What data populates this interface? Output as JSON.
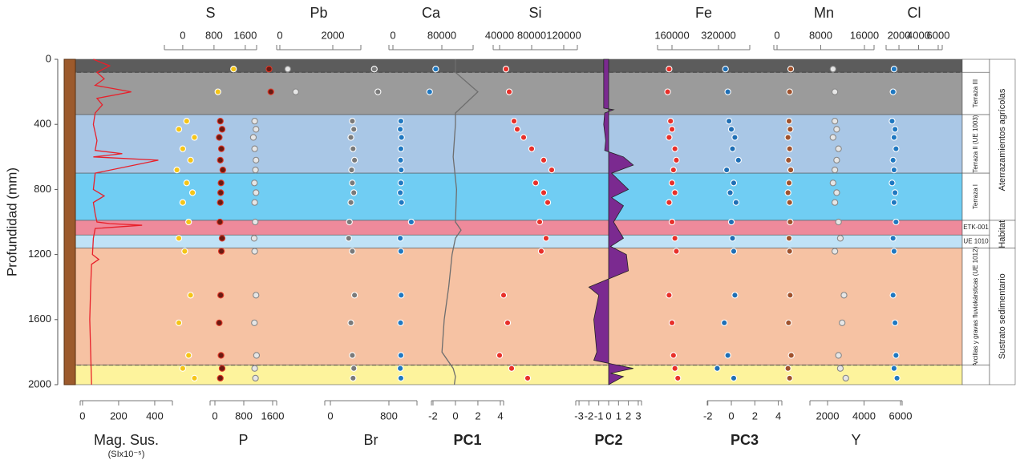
{
  "chart_data": {
    "type": "depth-profile",
    "ylabel": "Profundidad (mm)",
    "ylim": [
      0,
      2000
    ],
    "yticks": [
      0,
      400,
      800,
      1200,
      1600,
      2000
    ],
    "units": [
      {
        "from": 0,
        "to": 80,
        "color": "#5c5c5c"
      },
      {
        "from": 80,
        "to": 340,
        "color": "#9b9b9b",
        "label": "Terraza III"
      },
      {
        "from": 340,
        "to": 700,
        "color": "#a9c7e6",
        "label": "Terraza II (UE 1003)"
      },
      {
        "from": 700,
        "to": 990,
        "color": "#70cdf3",
        "label": "Terraza I"
      },
      {
        "from": 990,
        "to": 1080,
        "color": "#ee8a9b",
        "label": "ETK-001"
      },
      {
        "from": 1080,
        "to": 1160,
        "color": "#c0e2f6",
        "label": "UE 1010"
      },
      {
        "from": 1160,
        "to": 1880,
        "color": "#f6c2a3",
        "label": "Arcillas y gravas fluviokársticas (UE 1012)"
      },
      {
        "from": 1880,
        "to": 2000,
        "color": "#fdf39c"
      }
    ],
    "groups": [
      {
        "from": 0,
        "to": 990,
        "label": "Aterrazamientos agrícolas"
      },
      {
        "from": 990,
        "to": 1160,
        "label": "Habitat"
      },
      {
        "from": 1160,
        "to": 2000,
        "label": "Sustrato sedimentario"
      }
    ],
    "tracks": [
      {
        "name": "S",
        "axis": "top",
        "kind": "scatter",
        "color": "#f5c518",
        "stroke": "#ffffff",
        "xlim": [
          -470,
          1890
        ],
        "xticks": [
          0,
          800,
          1600
        ],
        "depth": [
          60,
          200,
          380,
          430,
          480,
          550,
          620,
          680,
          760,
          820,
          880,
          1000,
          1100,
          1180,
          1450,
          1620,
          1820,
          1900,
          1960
        ],
        "values": [
          1300,
          900,
          100,
          -100,
          300,
          0,
          200,
          -150,
          100,
          250,
          0,
          150,
          -100,
          50,
          200,
          -100,
          150,
          0,
          300
        ]
      },
      {
        "name": "Pb",
        "axis": "top",
        "kind": "scatter",
        "color": "#e6e6e6",
        "stroke": "#888888",
        "xlim": [
          -120,
          3060
        ],
        "xticks": [
          0,
          2000
        ],
        "depth": [
          60,
          200,
          380,
          430,
          480,
          550,
          620,
          680,
          760,
          820,
          880,
          1000,
          1100,
          1180,
          1450,
          1620,
          1820,
          1900,
          1960
        ],
        "values": [
          300,
          600,
          -950,
          -900,
          -1000,
          -950,
          -900,
          -920,
          -960,
          -900,
          -950,
          -930,
          -970,
          -950,
          -900,
          -960,
          -880,
          -950,
          -920
        ]
      },
      {
        "name": "Ca",
        "axis": "top",
        "kind": "scatter",
        "color": "#1f78c1",
        "stroke": "#ffffff",
        "xlim": [
          -6560,
          131150
        ],
        "xticks": [
          0,
          80000
        ],
        "depth": [
          60,
          200,
          380,
          430,
          480,
          550,
          620,
          680,
          760,
          820,
          880,
          1000,
          1100,
          1180,
          1450,
          1620,
          1820,
          1900,
          1960
        ],
        "values": [
          70000,
          60000,
          13000,
          12000,
          14000,
          13000,
          12500,
          13500,
          13000,
          12000,
          14000,
          30000,
          12000,
          13000,
          13500,
          12500,
          13000,
          12000,
          13000
        ]
      },
      {
        "name": "Si",
        "axis": "top",
        "kind": "scatter",
        "color": "#e8302a",
        "stroke": "#ffffff",
        "xlim": [
          32000,
          137000
        ],
        "xticks": [
          40000,
          80000,
          120000
        ],
        "depth": [
          60,
          200,
          380,
          430,
          480,
          550,
          620,
          680,
          760,
          820,
          880,
          1000,
          1100,
          1180,
          1450,
          1620,
          1820,
          1900,
          1960
        ],
        "values": [
          48000,
          52000,
          58000,
          62000,
          70000,
          80000,
          95000,
          105000,
          85000,
          95000,
          100000,
          90000,
          98000,
          92000,
          45000,
          50000,
          40000,
          55000,
          75000
        ]
      },
      {
        "name": "Fe",
        "axis": "top",
        "kind": "scatter",
        "color": "#e8302a",
        "stroke": "#ffffff",
        "xlim": [
          110300,
          427600
        ],
        "xticks": [
          160000,
          320000
        ],
        "depth": [
          60,
          200,
          380,
          430,
          480,
          550,
          620,
          680,
          760,
          820,
          880,
          1000,
          1100,
          1180,
          1450,
          1620,
          1820,
          1900,
          1960
        ],
        "values": [
          150000,
          145000,
          155000,
          160000,
          150000,
          170000,
          175000,
          165000,
          160000,
          170000,
          150000,
          160000,
          170000,
          175000,
          150000,
          160000,
          165000,
          170000,
          180000
        ]
      },
      {
        "name": "Mn",
        "axis": "top",
        "kind": "scatter",
        "color": "#a0522d",
        "stroke": "#ffffff",
        "xlim": [
          -590,
          17760
        ],
        "xticks": [
          0,
          8000,
          16000
        ],
        "depth": [
          60,
          200,
          380,
          430,
          480,
          550,
          620,
          680,
          760,
          820,
          880,
          1000,
          1100,
          1180,
          1450,
          1620,
          1820,
          1900,
          1960
        ],
        "values": [
          2500,
          2300,
          2200,
          2400,
          2000,
          2300,
          2100,
          2500,
          2200,
          2000,
          2300,
          2400,
          2200,
          2300,
          2400,
          2100,
          2600,
          2000,
          2300
        ]
      },
      {
        "name": "Cl",
        "axis": "top",
        "kind": "scatter",
        "color": "#1f78c1",
        "stroke": "#ffffff",
        "xlim": [
          690,
          6410
        ],
        "xticks": [
          2000,
          4000,
          6000
        ],
        "depth": [
          60,
          200,
          380,
          430,
          480,
          550,
          620,
          680,
          760,
          820,
          880,
          1000,
          1100,
          1180,
          1450,
          1620,
          1820,
          1900,
          1960
        ],
        "values": [
          1500,
          1400,
          1300,
          1600,
          1500,
          1700,
          1400,
          1500,
          1300,
          1600,
          1500,
          1700,
          1400,
          1500,
          1400,
          1600,
          1700,
          1500,
          1800
        ]
      },
      {
        "name": "Mag. Sus.",
        "subtitle": "(SIx10⁻⁵)",
        "axis": "bottom",
        "kind": "line",
        "color": "#e8202a",
        "xlim": [
          -13,
          498
        ],
        "xticks": [
          0,
          200,
          400
        ],
        "depth": [
          0,
          40,
          80,
          120,
          160,
          200,
          240,
          280,
          330,
          400,
          500,
          560,
          580,
          600,
          620,
          700,
          800,
          840,
          880,
          950,
          1000,
          1010,
          1020,
          1040,
          1100,
          1200,
          1230,
          1260,
          1400,
          1600,
          1800,
          2000
        ],
        "values": [
          60,
          150,
          80,
          120,
          70,
          270,
          80,
          110,
          70,
          60,
          80,
          70,
          220,
          60,
          420,
          70,
          60,
          120,
          60,
          70,
          80,
          150,
          330,
          70,
          60,
          55,
          90,
          50,
          45,
          40,
          45,
          50
        ]
      },
      {
        "name": "P",
        "axis": "bottom",
        "kind": "scatter",
        "color": "#6b1a12",
        "stroke": "#e03a2a",
        "xlim": [
          -133,
          1711
        ],
        "xticks": [
          0,
          800,
          1600
        ],
        "depth": [
          60,
          200,
          380,
          430,
          480,
          550,
          620,
          680,
          760,
          820,
          880,
          1000,
          1100,
          1180,
          1450,
          1620,
          1820,
          1900,
          1960
        ],
        "values": [
          1500,
          1550,
          150,
          200,
          120,
          180,
          150,
          220,
          170,
          160,
          150,
          140,
          200,
          180,
          160,
          120,
          170,
          200,
          150
        ]
      },
      {
        "name": "Br",
        "axis": "bottom",
        "kind": "scatter",
        "color": "#7a7a7a",
        "stroke": "#ffffff",
        "xlim": [
          -77,
          1184
        ],
        "xticks": [
          0,
          800
        ],
        "depth": [
          60,
          200,
          380,
          430,
          480,
          550,
          620,
          680,
          760,
          820,
          880,
          1000,
          1100,
          1180,
          1450,
          1620,
          1820,
          1900,
          1960
        ],
        "values": [
          600,
          650,
          300,
          320,
          280,
          310,
          330,
          290,
          300,
          320,
          280,
          260,
          250,
          300,
          330,
          280,
          300,
          320,
          310
        ]
      },
      {
        "name": "PC1",
        "axis": "bottom",
        "kind": "line",
        "bold": true,
        "color": "#6e6e6e",
        "xlim": [
          -2.14,
          4.29
        ],
        "xticks": [
          -2,
          0,
          2,
          4
        ],
        "depth": [
          0,
          80,
          200,
          330,
          400,
          600,
          800,
          1000,
          1050,
          1100,
          1200,
          1400,
          1600,
          1800,
          1900,
          1950,
          2000
        ],
        "values": [
          0,
          0,
          2,
          0,
          0,
          -0.2,
          0.1,
          0,
          0.5,
          0,
          -0.3,
          -0.6,
          -1,
          -1.2,
          -0.2,
          0,
          -0.1
        ]
      },
      {
        "name": "PC2",
        "axis": "bottom",
        "kind": "area",
        "bold": true,
        "color": "#7b2a90",
        "xlim": [
          -3.33,
          3.33
        ],
        "xticks": [
          -3,
          -2,
          -1,
          0,
          1,
          2,
          3
        ],
        "depth": [
          0,
          300,
          310,
          330,
          400,
          500,
          560,
          600,
          650,
          700,
          800,
          850,
          900,
          1000,
          1100,
          1150,
          1200,
          1300,
          1350,
          1400,
          1450,
          1600,
          1800,
          1850,
          1900,
          1930,
          1950,
          2000
        ],
        "values": [
          -0.5,
          -0.5,
          0.5,
          -0.4,
          -0.5,
          -0.3,
          -0.4,
          1.5,
          2.5,
          0.3,
          2,
          0.3,
          1.5,
          0.5,
          1.5,
          0.2,
          1.8,
          2,
          0,
          -2,
          -1,
          -1.5,
          -1.2,
          -1.5,
          2.5,
          0.2,
          1.5,
          0
        ]
      },
      {
        "name": "PC3",
        "axis": "bottom",
        "kind": "scatter",
        "bold": true,
        "color": "#1f6fb5",
        "stroke": "#ffffff",
        "xlim": [
          -2.05,
          4.3
        ],
        "xticks": [
          -2,
          0,
          2,
          4
        ],
        "depth": [
          60,
          200,
          380,
          430,
          480,
          550,
          620,
          680,
          760,
          820,
          880,
          1000,
          1100,
          1180,
          1450,
          1620,
          1820,
          1900,
          1960
        ],
        "values": [
          -0.5,
          -0.3,
          -0.2,
          0,
          0.3,
          0.1,
          0.6,
          -0.4,
          0.2,
          -0.1,
          0.4,
          0,
          0.1,
          0.2,
          0.3,
          -0.6,
          -0.3,
          -1.2,
          0.2
        ]
      },
      {
        "name": "Y",
        "axis": "bottom",
        "kind": "scatter",
        "color": "#e6e6e6",
        "stroke": "#888888",
        "xlim": [
          1033,
          6088
        ],
        "xticks": [
          2000,
          4000,
          6000
        ],
        "depth": [
          60,
          200,
          380,
          430,
          480,
          550,
          620,
          680,
          760,
          820,
          880,
          1000,
          1100,
          1180,
          1450,
          1620,
          1820,
          1900,
          1960
        ],
        "values": [
          2300,
          2400,
          2400,
          2500,
          2300,
          2600,
          2500,
          2400,
          2300,
          2500,
          2400,
          2600,
          2700,
          2400,
          2900,
          2800,
          2600,
          2700,
          3000
        ]
      }
    ]
  }
}
